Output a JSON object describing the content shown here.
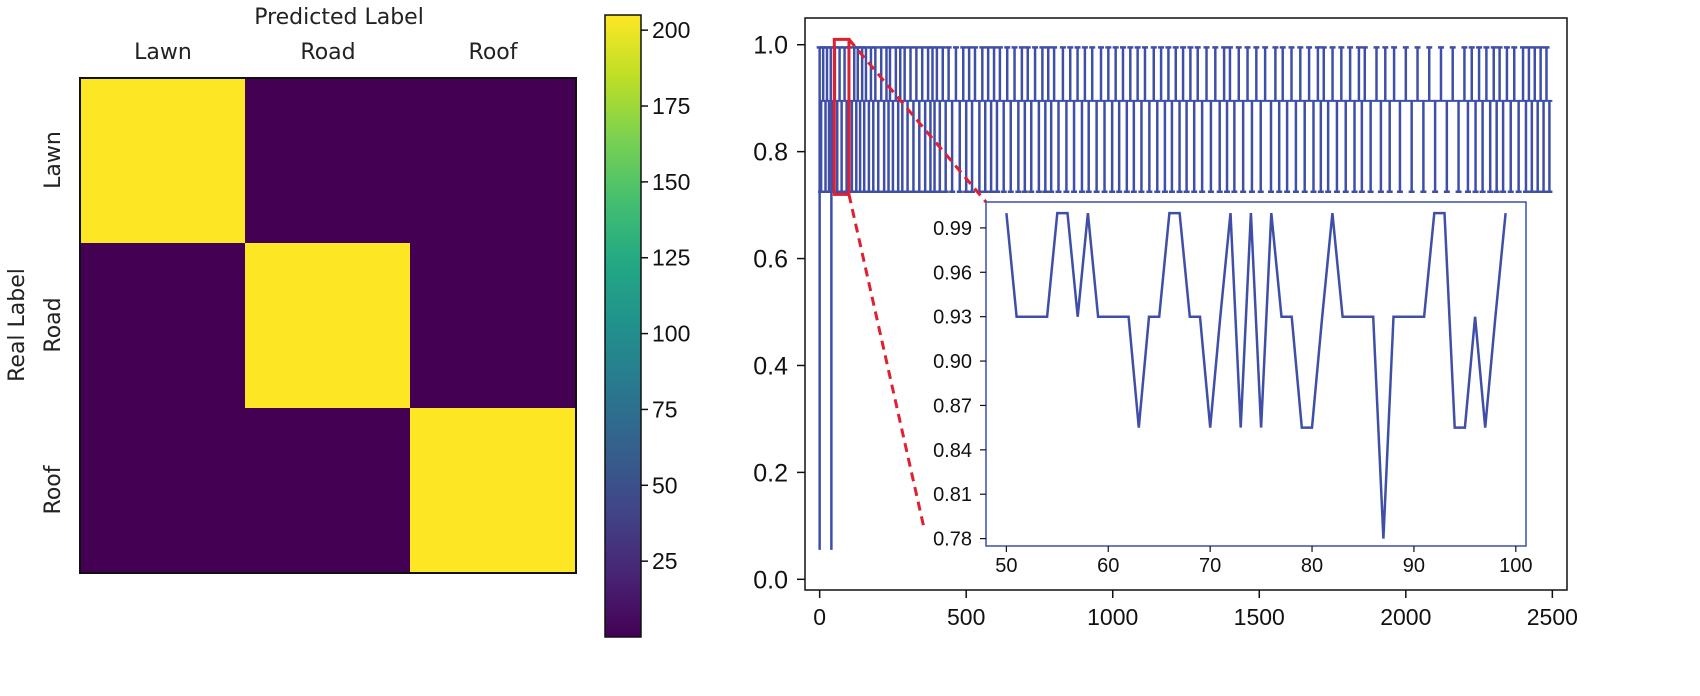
{
  "chart_data": [
    {
      "type": "heatmap",
      "title": "Predicted Label",
      "xlabel": "Predicted Label",
      "ylabel": "Real Label",
      "x_categories": [
        "Lawn",
        "Road",
        "Roof"
      ],
      "y_categories": [
        "Lawn",
        "Road",
        "Roof"
      ],
      "matrix": [
        [
          200,
          0,
          0
        ],
        [
          0,
          200,
          0
        ],
        [
          0,
          0,
          200
        ]
      ],
      "colorbar": {
        "range": [
          0,
          205
        ],
        "ticks": [
          "25",
          "50",
          "75",
          "100",
          "125",
          "150",
          "175",
          "200"
        ],
        "tick_values": [
          25,
          50,
          75,
          100,
          125,
          150,
          175,
          200
        ]
      },
      "colors": {
        "low": "#440154",
        "high": "#fde725"
      }
    },
    {
      "type": "line",
      "xlim": [
        -50,
        2550
      ],
      "ylim": [
        -0.02,
        1.05
      ],
      "x_ticks": [
        "0",
        "500",
        "1000",
        "1500",
        "2000",
        "2500"
      ],
      "x_tick_values": [
        0,
        500,
        1000,
        1500,
        2000,
        2500
      ],
      "y_ticks": [
        "0.0",
        "0.2",
        "0.4",
        "0.6",
        "0.8",
        "1.0"
      ],
      "y_tick_values": [
        0,
        0.2,
        0.4,
        0.6,
        0.8,
        1.0
      ],
      "levels": {
        "high": 0.995,
        "mid": 0.895,
        "low": 0.725
      },
      "early_dips": [
        {
          "x": 0,
          "y": 0.055
        },
        {
          "x": 40,
          "y": 0.055
        }
      ],
      "spike_high_x": [
        0,
        12,
        25,
        38,
        52,
        68,
        85,
        100,
        118,
        130,
        145,
        158,
        175,
        190,
        210,
        228,
        240,
        260,
        275,
        290,
        310,
        330,
        350,
        370,
        385,
        400,
        420,
        440,
        465,
        490,
        510,
        530,
        555,
        575,
        595,
        615,
        640,
        665,
        690,
        710,
        735,
        760,
        780,
        800,
        830,
        855,
        880,
        905,
        930,
        960,
        985,
        1010,
        1035,
        1060,
        1085,
        1110,
        1140,
        1165,
        1190,
        1215,
        1240,
        1265,
        1290,
        1320,
        1350,
        1380,
        1400,
        1430,
        1460,
        1490,
        1520,
        1555,
        1580,
        1610,
        1640,
        1670,
        1700,
        1720,
        1750,
        1780,
        1810,
        1840,
        1860,
        1900,
        1930,
        1960,
        2000,
        2040,
        2080,
        2120,
        2160,
        2200,
        2225,
        2250,
        2275,
        2300,
        2320,
        2345,
        2370,
        2400,
        2420,
        2440,
        2460,
        2480
      ],
      "spike_low_x": [
        5,
        20,
        32,
        45,
        60,
        75,
        92,
        110,
        125,
        138,
        152,
        168,
        183,
        200,
        220,
        235,
        250,
        268,
        282,
        300,
        320,
        340,
        360,
        378,
        392,
        410,
        430,
        452,
        478,
        500,
        520,
        545,
        565,
        585,
        605,
        628,
        652,
        678,
        700,
        722,
        748,
        770,
        790,
        815,
        842,
        868,
        895,
        918,
        945,
        972,
        998,
        1022,
        1048,
        1072,
        1098,
        1125,
        1152,
        1178,
        1202,
        1228,
        1252,
        1278,
        1305,
        1335,
        1365,
        1390,
        1415,
        1445,
        1475,
        1505,
        1540,
        1568,
        1595,
        1625,
        1655,
        1685,
        1710,
        1735,
        1765,
        1795,
        1825,
        1850,
        1880,
        1915,
        1945,
        1980,
        2020,
        2060,
        2100,
        2140,
        2180,
        2212,
        2238,
        2262,
        2288,
        2310,
        2332,
        2358,
        2385,
        2410,
        2430,
        2450,
        2470,
        2490
      ],
      "zoom_box": {
        "x_range": [
          50,
          100
        ],
        "y_range": [
          0.72,
          1.01
        ]
      },
      "line_color": "#3f4fa8",
      "highlight_color": "#e0202e",
      "inset": {
        "type": "line",
        "xlim": [
          48,
          101
        ],
        "ylim": [
          0.775,
          1.0075
        ],
        "x_ticks": [
          "50",
          "60",
          "70",
          "80",
          "90",
          "100"
        ],
        "x_tick_values": [
          50,
          60,
          70,
          80,
          90,
          100
        ],
        "y_ticks": [
          "0.78",
          "0.81",
          "0.84",
          "0.87",
          "0.90",
          "0.93",
          "0.96",
          "0.99"
        ],
        "y_tick_values": [
          0.78,
          0.81,
          0.84,
          0.87,
          0.9,
          0.93,
          0.96,
          0.99
        ],
        "x": [
          50,
          51,
          52,
          53,
          54,
          55,
          56,
          57,
          58,
          59,
          60,
          61,
          62,
          63,
          64,
          65,
          66,
          67,
          68,
          69,
          70,
          71,
          72,
          73,
          74,
          75,
          76,
          77,
          78,
          79,
          80,
          81,
          82,
          83,
          84,
          85,
          86,
          87,
          88,
          89,
          90,
          91,
          92,
          93,
          94,
          95,
          96,
          97,
          98,
          99
        ],
        "y": [
          1.0,
          0.93,
          0.93,
          0.93,
          0.93,
          1.0,
          1.0,
          0.93,
          1.0,
          0.93,
          0.93,
          0.93,
          0.93,
          0.855,
          0.93,
          0.93,
          1.0,
          1.0,
          0.93,
          0.93,
          0.855,
          0.93,
          1.0,
          0.855,
          1.0,
          0.855,
          1.0,
          0.93,
          0.93,
          0.855,
          0.855,
          0.93,
          1.0,
          0.93,
          0.93,
          0.93,
          0.93,
          0.78,
          0.93,
          0.93,
          0.93,
          0.93,
          1.0,
          1.0,
          0.855,
          0.855,
          0.93,
          0.855,
          0.93,
          1.0
        ]
      }
    }
  ]
}
